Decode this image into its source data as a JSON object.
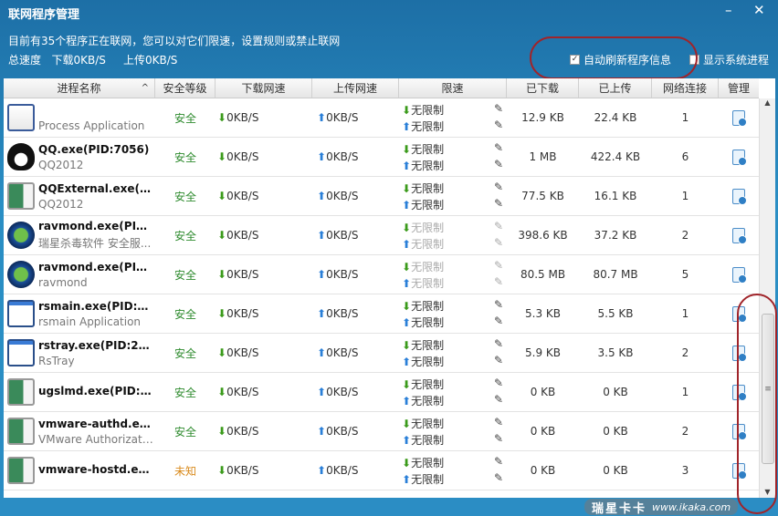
{
  "window": {
    "title": "联网程序管理",
    "minimize": "–",
    "close": "✕"
  },
  "summary": {
    "line1": "目前有35个程序正在联网，您可以对它们限速，设置规则或禁止联网",
    "total_label": "总速度",
    "download": "下载0KB/S",
    "upload": "上传0KB/S"
  },
  "options": {
    "auto_refresh": {
      "label": "自动刷新程序信息",
      "checked": true
    },
    "show_system": {
      "label": "显示系统进程",
      "checked": false
    }
  },
  "columns": [
    "进程名称",
    "安全等级",
    "下载网速",
    "上传网速",
    "限速",
    "已下载",
    "已上传",
    "网络连接",
    "管理"
  ],
  "sort_indicator": "^",
  "rows": [
    {
      "name": "",
      "desc": "Process Application",
      "security": "安全",
      "down": "0KB/S",
      "up": "0KB/S",
      "limit_down": "无限制",
      "limit_up": "无限制",
      "downloaded": "12.9 KB",
      "uploaded": "22.4 KB",
      "connections": "1",
      "icon": "notepad-icon",
      "disabled": false
    },
    {
      "name": "QQ.exe(PID:7056)",
      "desc": "QQ2012",
      "security": "安全",
      "down": "0KB/S",
      "up": "0KB/S",
      "limit_down": "无限制",
      "limit_up": "无限制",
      "downloaded": "1 MB",
      "uploaded": "422.4 KB",
      "connections": "6",
      "icon": "qq-penguin-icon",
      "disabled": false
    },
    {
      "name": "QQExternal.exe(PID:...",
      "desc": "QQ2012",
      "security": "安全",
      "down": "0KB/S",
      "up": "0KB/S",
      "limit_down": "无限制",
      "limit_up": "无限制",
      "downloaded": "77.5 KB",
      "uploaded": "16.1 KB",
      "connections": "1",
      "icon": "application-icon",
      "disabled": false
    },
    {
      "name": "ravmond.exe(PID:...",
      "desc": "瑞星杀毒软件 安全服...",
      "security": "安全",
      "down": "0KB/S",
      "up": "0KB/S",
      "limit_down": "无限制",
      "limit_up": "无限制",
      "downloaded": "398.6 KB",
      "uploaded": "37.2 KB",
      "connections": "2",
      "icon": "rising-globe-icon",
      "disabled": true
    },
    {
      "name": "ravmond.exe(PID:...",
      "desc": "ravmond",
      "security": "安全",
      "down": "0KB/S",
      "up": "0KB/S",
      "limit_down": "无限制",
      "limit_up": "无限制",
      "downloaded": "80.5 MB",
      "uploaded": "80.7 MB",
      "connections": "5",
      "icon": "rising-globe-icon",
      "disabled": true
    },
    {
      "name": "rsmain.exe(PID:23...",
      "desc": "rsmain Application",
      "security": "安全",
      "down": "0KB/S",
      "up": "0KB/S",
      "limit_down": "无限制",
      "limit_up": "无限制",
      "downloaded": "5.3 KB",
      "uploaded": "5.5 KB",
      "connections": "1",
      "icon": "window-icon",
      "disabled": false
    },
    {
      "name": "rstray.exe(PID:2904)",
      "desc": "RsTray",
      "security": "安全",
      "down": "0KB/S",
      "up": "0KB/S",
      "limit_down": "无限制",
      "limit_up": "无限制",
      "downloaded": "5.9 KB",
      "uploaded": "3.5 KB",
      "connections": "2",
      "icon": "window-icon",
      "disabled": false
    },
    {
      "name": "ugslmd.exe(PID:32...",
      "desc": "",
      "security": "安全",
      "down": "0KB/S",
      "up": "0KB/S",
      "limit_down": "无限制",
      "limit_up": "无限制",
      "downloaded": "0 KB",
      "uploaded": "0 KB",
      "connections": "1",
      "icon": "application-icon",
      "disabled": false
    },
    {
      "name": "vmware-authd.exe...",
      "desc": "VMware Authorizati...",
      "security": "安全",
      "down": "0KB/S",
      "up": "0KB/S",
      "limit_down": "无限制",
      "limit_up": "无限制",
      "downloaded": "0 KB",
      "uploaded": "0 KB",
      "connections": "2",
      "icon": "application-icon",
      "disabled": false
    },
    {
      "name": "vmware-hostd.exe...",
      "desc": "",
      "security": "未知",
      "down": "0KB/S",
      "up": "0KB/S",
      "limit_down": "无限制",
      "limit_up": "无限制",
      "downloaded": "0 KB",
      "uploaded": "0 KB",
      "connections": "3",
      "icon": "application-icon",
      "disabled": false
    }
  ],
  "colors": {
    "safe": "#2e8b2e",
    "unknown": "#d98a1c",
    "down_arrow": "#3a9a1a",
    "up_arrow": "#2a7fd8",
    "annotation": "#a0242a"
  },
  "watermark": {
    "brand": "瑞星卡卡",
    "url": "www.ikaka.com"
  }
}
